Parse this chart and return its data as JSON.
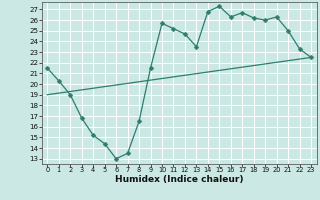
{
  "xlabel": "Humidex (Indice chaleur)",
  "background_color": "#cbe8e4",
  "grid_color": "#ffffff",
  "line_color": "#2e7d6e",
  "xlim": [
    -0.5,
    23.5
  ],
  "ylim": [
    12.5,
    27.7
  ],
  "xticks": [
    0,
    1,
    2,
    3,
    4,
    5,
    6,
    7,
    8,
    9,
    10,
    11,
    12,
    13,
    14,
    15,
    16,
    17,
    18,
    19,
    20,
    21,
    22,
    23
  ],
  "yticks": [
    13,
    14,
    15,
    16,
    17,
    18,
    19,
    20,
    21,
    22,
    23,
    24,
    25,
    26,
    27
  ],
  "line1_x": [
    0,
    1,
    2,
    3,
    4,
    5,
    6,
    7,
    8,
    9,
    10,
    11,
    12,
    13,
    14,
    15,
    16,
    17,
    18,
    19,
    20,
    21,
    22,
    23
  ],
  "line1_y": [
    21.5,
    20.3,
    19.0,
    16.8,
    15.2,
    14.4,
    13.0,
    13.5,
    16.5,
    21.5,
    25.7,
    25.2,
    24.7,
    23.5,
    26.8,
    27.3,
    26.3,
    26.7,
    26.2,
    26.0,
    26.3,
    25.0,
    23.3,
    22.5
  ],
  "line2_x": [
    0,
    23
  ],
  "line2_y": [
    19.0,
    22.5
  ],
  "marker_size": 2.5,
  "linewidth": 0.9,
  "tick_fontsize": 4.8,
  "xlabel_fontsize": 6.5
}
